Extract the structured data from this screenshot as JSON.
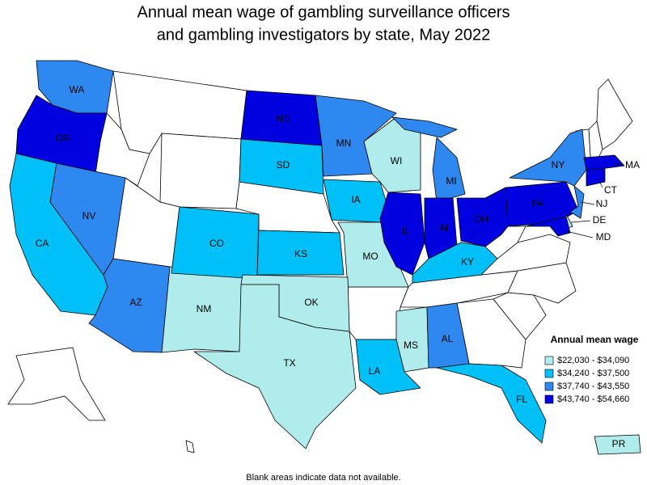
{
  "title": [
    "Annual mean wage of gambling surveillance officers",
    "and gambling investigators by state, May 2022"
  ],
  "legend": {
    "title": "Annual mean wage",
    "items": [
      {
        "label": "$22,030 - $34,090",
        "color": "#b0ecec"
      },
      {
        "label": "$34,240 - $37,500",
        "color": "#00c0f8"
      },
      {
        "label": "$37,740 - $43,550",
        "color": "#2e88f0"
      },
      {
        "label": "$43,740 - $54,660",
        "color": "#0000e0"
      }
    ]
  },
  "states": [
    {
      "label": "WA",
      "class": 2
    },
    {
      "label": "OR",
      "class": 3
    },
    {
      "label": "CA",
      "class": 1
    },
    {
      "label": "NV",
      "class": 2
    },
    {
      "label": "AZ",
      "class": 2
    },
    {
      "label": "NM",
      "class": 0
    },
    {
      "label": "CO",
      "class": 1
    },
    {
      "label": "SD",
      "class": 1
    },
    {
      "label": "ND",
      "class": 3
    },
    {
      "label": "MN",
      "class": 2
    },
    {
      "label": "IA",
      "class": 1
    },
    {
      "label": "KS",
      "class": 1
    },
    {
      "label": "MO",
      "class": 0
    },
    {
      "label": "OK",
      "class": 0
    },
    {
      "label": "TX",
      "class": 0
    },
    {
      "label": "WI",
      "class": 0
    },
    {
      "label": "MI",
      "class": 2
    },
    {
      "label": "IL",
      "class": 3
    },
    {
      "label": "IN",
      "class": 3
    },
    {
      "label": "OH",
      "class": 3
    },
    {
      "label": "KY",
      "class": 1
    },
    {
      "label": "MS",
      "class": 0
    },
    {
      "label": "AL",
      "class": 2
    },
    {
      "label": "LA",
      "class": 1
    },
    {
      "label": "FL",
      "class": 1
    },
    {
      "label": "PA",
      "class": 3
    },
    {
      "label": "NY",
      "class": 2
    },
    {
      "label": "NJ",
      "class": 2
    },
    {
      "label": "CT",
      "class": 3
    },
    {
      "label": "MA",
      "class": 3
    },
    {
      "label": "DE",
      "class": 0
    },
    {
      "label": "MD",
      "class": 3
    },
    {
      "label": "PR",
      "class": 0
    }
  ],
  "footnote": "Blank areas indicate data not available."
}
